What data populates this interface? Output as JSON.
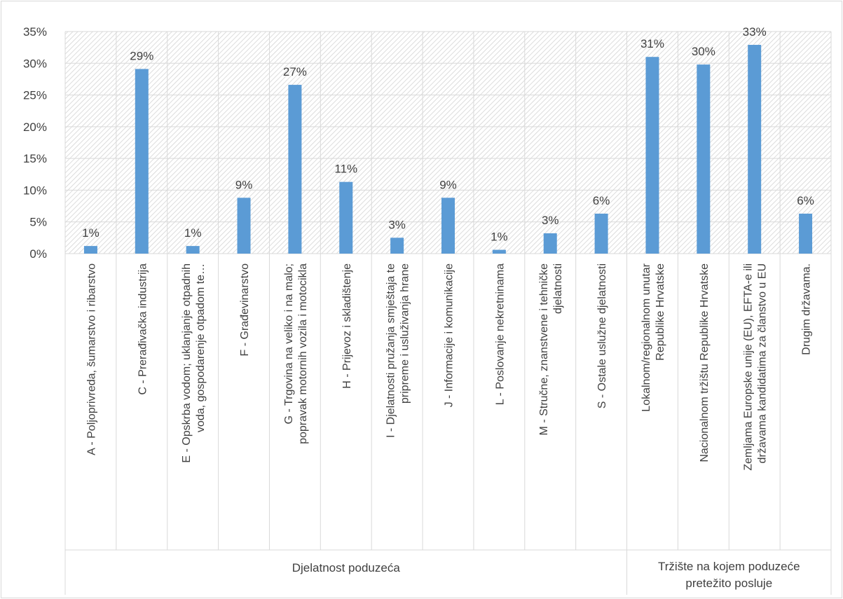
{
  "chart_data": {
    "type": "bar",
    "title": "",
    "xlabel": "",
    "ylabel": "",
    "ylim": [
      0,
      35
    ],
    "yticks": [
      "0%",
      "5%",
      "10%",
      "15%",
      "20%",
      "25%",
      "30%",
      "35%"
    ],
    "grid": true,
    "legend": "none",
    "colors": {
      "bar": "#5b9bd5",
      "plot_background": "#d9d9d9"
    },
    "groups": [
      {
        "label": "Djelatnost poduzeća",
        "start": 0,
        "count": 11
      },
      {
        "label": "Tržište na kojem poduzeće pretežito posluje",
        "start": 11,
        "count": 4
      }
    ],
    "categories": [
      "A - Poljoprivreda, šumarstvo i ribarstvo",
      "C - Prerađivačka industrija",
      "E - Opskrba vodom; uklanjanje otpadnih voda, gospodarenje otpadom te…",
      "F - Građevinarstvo",
      "G - Trgovina na veliko i na malo; popravak motornih vozila i motocikla",
      "H - Prijevoz i skladištenje",
      "I - Djelatnosti pružanja smještaja te pripreme i usluživanja hrane",
      "J - Informacije i komunikacije",
      "L - Poslovanje nekretninama",
      "M - Stručne, znanstvene i tehničke djelatnosti",
      "S - Ostale uslužne djelatnosti",
      "Lokalnom/regionalnom unutar Republike Hrvatske",
      "Nacionalnom tržištu Republike Hrvatske",
      "Zemljama Europske unije (EU), EFTA-e ili državama kandidatima za članstvo u EU",
      "Drugim državama."
    ],
    "category_lines": [
      [
        "A - Poljoprivreda, šumarstvo i ribarstvo"
      ],
      [
        "C - Prerađivačka industrija"
      ],
      [
        "E - Opskrba vodom; uklanjanje otpadnih",
        "voda, gospodarenje otpadom te…"
      ],
      [
        "F - Građevinarstvo"
      ],
      [
        "G - Trgovina na veliko i na malo;",
        "popravak motornih vozila i motocikla"
      ],
      [
        "H - Prijevoz i skladištenje"
      ],
      [
        "I - Djelatnosti pružanja smještaja te",
        "pripreme i usluživanja hrane"
      ],
      [
        "J - Informacije i komunikacije"
      ],
      [
        "L - Poslovanje nekretninama"
      ],
      [
        "M - Stručne, znanstvene i tehničke",
        "djelatnosti"
      ],
      [
        "S - Ostale uslužne djelatnosti"
      ],
      [
        "Lokalnom/regionalnom unutar",
        "Republike Hrvatske"
      ],
      [
        "Nacionalnom tržištu Republike Hrvatske"
      ],
      [
        "Zemljama Europske unije (EU), EFTA-e ili",
        "državama kandidatima za članstvo u EU"
      ],
      [
        "Drugim državama."
      ]
    ],
    "values": [
      1.2,
      29.1,
      1.2,
      8.8,
      26.6,
      11.3,
      2.5,
      8.8,
      0.6,
      3.2,
      6.3,
      31.0,
      29.8,
      32.9,
      6.3
    ],
    "data_labels": [
      "1%",
      "29%",
      "1%",
      "9%",
      "27%",
      "11%",
      "3%",
      "9%",
      "1%",
      "3%",
      "6%",
      "31%",
      "30%",
      "33%",
      "6%"
    ]
  }
}
